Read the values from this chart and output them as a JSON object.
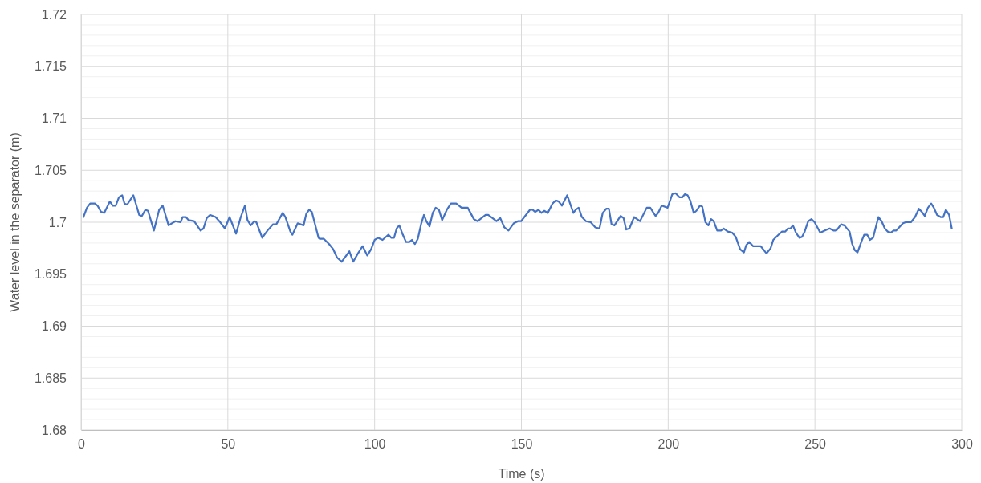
{
  "chart_data": {
    "type": "line",
    "xlabel": "Time (s)",
    "ylabel": "Water level in the separator (m)",
    "xlim": [
      0,
      300
    ],
    "xticks": [
      0,
      50,
      100,
      150,
      200,
      250,
      300
    ],
    "ylim": [
      1.68,
      1.72
    ],
    "yticks": [
      1.68,
      {
        "value": 1.681,
        "label": null
      },
      {
        "value": 1.682,
        "label": null
      },
      {
        "value": 1.683,
        "label": null
      },
      {
        "value": 1.684,
        "label": null
      },
      1.685,
      {
        "value": 1.686,
        "label": null
      },
      {
        "value": 1.687,
        "label": null
      },
      {
        "value": 1.688,
        "label": null
      },
      {
        "value": 1.689,
        "label": null
      },
      1.69,
      {
        "value": 1.691,
        "label": null
      },
      {
        "value": 1.692,
        "label": null
      },
      {
        "value": 1.693,
        "label": null
      },
      {
        "value": 1.694,
        "label": null
      },
      1.695,
      {
        "value": 1.696,
        "label": null
      },
      {
        "value": 1.697,
        "label": null
      },
      {
        "value": 1.698,
        "label": null
      },
      {
        "value": 1.699,
        "label": null
      },
      1.7,
      {
        "value": 1.701,
        "label": null
      },
      {
        "value": 1.702,
        "label": null
      },
      {
        "value": 1.703,
        "label": null
      },
      {
        "value": 1.704,
        "label": null
      },
      1.705,
      {
        "value": 1.706,
        "label": null
      },
      {
        "value": 1.707,
        "label": null
      },
      {
        "value": 1.708,
        "label": null
      },
      {
        "value": 1.709,
        "label": null
      },
      1.71,
      {
        "value": 1.711,
        "label": null
      },
      {
        "value": 1.712,
        "label": null
      },
      {
        "value": 1.713,
        "label": null
      },
      {
        "value": 1.714,
        "label": null
      },
      1.715,
      {
        "value": 1.716,
        "label": null
      },
      {
        "value": 1.717,
        "label": null
      },
      {
        "value": 1.718,
        "label": null
      },
      {
        "value": 1.719,
        "label": null
      },
      1.72
    ],
    "grid": true,
    "marker": "none",
    "line_style": "solid",
    "x": [
      0.8,
      2.0,
      3.1,
      4.7,
      5.6,
      6.8,
      7.9,
      9.8,
      10.8,
      11.8,
      12.9,
      14.0,
      14.8,
      15.7,
      17.8,
      19.8,
      20.7,
      21.9,
      22.8,
      24.8,
      26.6,
      27.8,
      29.8,
      32.1,
      33.9,
      34.6,
      35.7,
      36.6,
      38.5,
      40.7,
      41.7,
      42.8,
      44.0,
      45.8,
      47.1,
      49.0,
      50.6,
      52.8,
      54.4,
      55.8,
      56.7,
      57.8,
      59.0,
      59.7,
      61.7,
      63.5,
      65.4,
      66.5,
      68.7,
      69.6,
      71.3,
      72.0,
      73.8,
      75.8,
      76.7,
      77.7,
      78.6,
      80.9,
      81.3,
      82.7,
      84.5,
      85.9,
      87.2,
      88.8,
      91.4,
      92.7,
      94.1,
      95.9,
      97.5,
      98.8,
      100.0,
      101.2,
      102.7,
      104.7,
      105.7,
      106.6,
      107.5,
      108.4,
      109.6,
      110.7,
      111.8,
      112.7,
      113.7,
      114.7,
      115.9,
      116.8,
      117.6,
      118.7,
      119.8,
      120.8,
      121.9,
      123.0,
      124.6,
      126.0,
      127.8,
      129.6,
      131.7,
      133.8,
      135.1,
      137.8,
      138.7,
      141.5,
      142.8,
      144.2,
      145.6,
      147.4,
      148.8,
      149.9,
      151.0,
      152.9,
      153.8,
      154.7,
      155.8,
      156.8,
      157.8,
      159.0,
      160.6,
      161.7,
      162.7,
      163.8,
      165.6,
      167.7,
      168.5,
      169.5,
      170.6,
      172.0,
      173.6,
      175.2,
      176.6,
      177.7,
      178.9,
      179.8,
      180.7,
      181.7,
      183.8,
      184.8,
      185.7,
      186.8,
      188.4,
      190.4,
      192.7,
      193.9,
      195.7,
      196.6,
      197.8,
      199.8,
      201.4,
      202.5,
      203.9,
      204.8,
      205.7,
      206.6,
      207.5,
      208.7,
      209.6,
      210.8,
      211.6,
      212.7,
      213.7,
      214.6,
      215.5,
      216.7,
      218.0,
      218.9,
      220.3,
      221.8,
      223.0,
      224.5,
      225.8,
      226.6,
      227.6,
      228.9,
      230.3,
      231.5,
      233.5,
      234.9,
      235.8,
      237.6,
      238.8,
      239.9,
      240.8,
      241.7,
      242.5,
      243.5,
      244.7,
      245.6,
      246.5,
      247.7,
      248.8,
      249.9,
      251.8,
      253.4,
      255.0,
      256.3,
      257.3,
      258.9,
      260.0,
      261.8,
      262.7,
      263.6,
      264.5,
      265.9,
      266.8,
      267.8,
      268.7,
      269.8,
      271.6,
      272.7,
      273.8,
      274.8,
      275.9,
      276.8,
      277.7,
      280.0,
      280.9,
      282.7,
      284.1,
      285.4,
      286.4,
      287.4,
      288.5,
      289.6,
      290.5,
      291.6,
      292.8,
      293.7,
      294.6,
      295.7,
      296.6
    ],
    "series": [
      {
        "color": "#4472c4",
        "values": [
          1.7005,
          1.7014,
          1.7018,
          1.7018,
          1.7016,
          1.701,
          1.7009,
          1.702,
          1.7016,
          1.7016,
          1.7024,
          1.7026,
          1.7018,
          1.7017,
          1.7026,
          1.7007,
          1.7006,
          1.7012,
          1.7011,
          1.6992,
          1.7012,
          1.7016,
          1.6997,
          1.7001,
          1.7,
          1.7005,
          1.7005,
          1.7002,
          1.7001,
          1.6992,
          1.6994,
          1.7004,
          1.7007,
          1.7005,
          1.7001,
          1.6994,
          1.7005,
          1.6989,
          1.7005,
          1.7016,
          1.7002,
          1.6997,
          1.7001,
          1.7,
          1.6985,
          1.6992,
          1.6998,
          1.6998,
          1.7009,
          1.7005,
          1.6991,
          1.6988,
          1.6999,
          1.6997,
          1.7008,
          1.7012,
          1.701,
          1.6985,
          1.6984,
          1.6984,
          1.6979,
          1.6974,
          1.6966,
          1.6962,
          1.6972,
          1.6962,
          1.6969,
          1.6977,
          1.6968,
          1.6974,
          1.6983,
          1.6985,
          1.6983,
          1.6988,
          1.6985,
          1.6985,
          1.6994,
          1.6997,
          1.6988,
          1.6981,
          1.6981,
          1.6983,
          1.6979,
          1.6984,
          1.6999,
          1.7007,
          1.7001,
          1.6996,
          1.7009,
          1.7014,
          1.7012,
          1.7002,
          1.7012,
          1.7018,
          1.7018,
          1.7014,
          1.7014,
          1.7003,
          1.7001,
          1.7007,
          1.7007,
          1.7001,
          1.7004,
          1.6995,
          1.6992,
          1.6999,
          1.7001,
          1.7001,
          1.7005,
          1.7012,
          1.7012,
          1.701,
          1.7012,
          1.7009,
          1.7011,
          1.7009,
          1.7018,
          1.7021,
          1.702,
          1.7016,
          1.7026,
          1.7009,
          1.7012,
          1.7014,
          1.7005,
          1.7001,
          1.7,
          1.6995,
          1.6994,
          1.7009,
          1.7013,
          1.7013,
          1.6998,
          1.6997,
          1.7006,
          1.7004,
          1.6993,
          1.6994,
          1.7005,
          1.7001,
          1.7014,
          1.7014,
          1.7006,
          1.7009,
          1.7016,
          1.7014,
          1.7027,
          1.7028,
          1.7024,
          1.7024,
          1.7027,
          1.7026,
          1.7021,
          1.7009,
          1.7011,
          1.7016,
          1.7015,
          1.7,
          1.6997,
          1.7003,
          1.7001,
          1.6992,
          1.6992,
          1.6994,
          1.6991,
          1.699,
          1.6986,
          1.6974,
          1.6971,
          1.6978,
          1.6981,
          1.6977,
          1.6977,
          1.6977,
          1.697,
          1.6975,
          1.6983,
          1.6988,
          1.6991,
          1.6991,
          1.6994,
          1.6994,
          1.6997,
          1.699,
          1.6985,
          1.6986,
          1.6991,
          1.7001,
          1.7003,
          1.7,
          1.699,
          1.6992,
          1.6994,
          1.6992,
          1.6992,
          1.6998,
          1.6997,
          1.6991,
          1.6979,
          1.6973,
          1.6971,
          1.6982,
          1.6988,
          1.6988,
          1.6983,
          1.6985,
          1.7005,
          1.7001,
          1.6994,
          1.6991,
          1.699,
          1.6992,
          1.6992,
          1.6999,
          1.7,
          1.7,
          1.7005,
          1.7013,
          1.701,
          1.7006,
          1.7014,
          1.7018,
          1.7014,
          1.7007,
          1.7005,
          1.7005,
          1.7012,
          1.7007,
          1.6994
        ]
      }
    ]
  }
}
